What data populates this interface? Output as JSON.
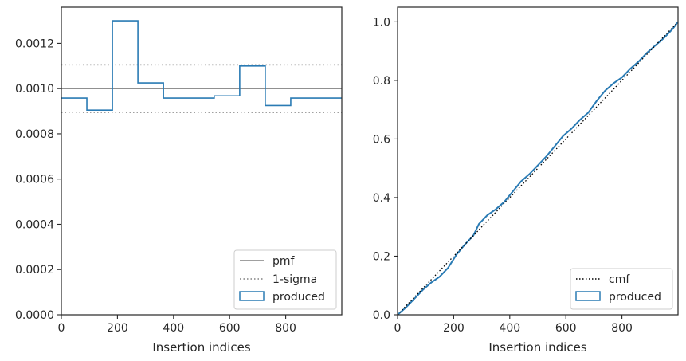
{
  "colors": {
    "produced": "#2a7bb4",
    "pmf": "#808080",
    "sigma": "#808080",
    "cmf": "#000000",
    "axes": "#262626"
  },
  "chart_data": [
    {
      "type": "step",
      "xlabel": "Insertion indices",
      "ylabel": "",
      "xlim": [
        0,
        1000
      ],
      "ylim": [
        0,
        0.00136
      ],
      "x_ticks": [
        0,
        200,
        400,
        600,
        800
      ],
      "x_tick_labels": [
        "0",
        "200",
        "400",
        "600",
        "800"
      ],
      "y_ticks": [
        0,
        0.0002,
        0.0004,
        0.0006,
        0.0008,
        0.001,
        0.0012
      ],
      "y_tick_labels": [
        "0.0000",
        "0.0002",
        "0.0004",
        "0.0006",
        "0.0008",
        "0.0010",
        "0.0012"
      ],
      "grid": false,
      "legend_position": "lower-right",
      "bin_edges": [
        0,
        91,
        182,
        273,
        364,
        455,
        545,
        636,
        727,
        818,
        909,
        1000
      ],
      "series": [
        {
          "name": "pmf",
          "style": "solid",
          "value": 0.001
        },
        {
          "name": "1-sigma",
          "style": "dotted",
          "values": [
            0.000895,
            0.001105
          ]
        },
        {
          "name": "produced",
          "style": "step",
          "values": [
            0.000958,
            0.000905,
            0.0013,
            0.001025,
            0.000958,
            0.000958,
            0.000968,
            0.0011,
            0.000925,
            0.000958,
            0.000958
          ]
        }
      ]
    },
    {
      "type": "line",
      "xlabel": "Insertion indices",
      "ylabel": "",
      "xlim": [
        0,
        1000
      ],
      "ylim": [
        0,
        1.05
      ],
      "x_ticks": [
        0,
        200,
        400,
        600,
        800
      ],
      "x_tick_labels": [
        "0",
        "200",
        "400",
        "600",
        "800"
      ],
      "y_ticks": [
        0,
        0.2,
        0.4,
        0.6,
        0.8,
        1.0
      ],
      "y_tick_labels": [
        "0.0",
        "0.2",
        "0.4",
        "0.6",
        "0.8",
        "1.0"
      ],
      "grid": false,
      "legend_position": "lower-right",
      "series": [
        {
          "name": "cmf",
          "style": "dotted",
          "x": [
            0,
            1000
          ],
          "y": [
            0,
            1
          ]
        },
        {
          "name": "produced",
          "style": "solid",
          "x": [
            0,
            30,
            60,
            90,
            120,
            150,
            180,
            210,
            240,
            270,
            290,
            320,
            350,
            380,
            410,
            440,
            470,
            500,
            530,
            560,
            590,
            620,
            650,
            680,
            710,
            740,
            770,
            800,
            830,
            860,
            890,
            920,
            950,
            980,
            1000
          ],
          "y": [
            0,
            0.025,
            0.055,
            0.085,
            0.11,
            0.13,
            0.16,
            0.205,
            0.24,
            0.27,
            0.31,
            0.34,
            0.36,
            0.385,
            0.42,
            0.455,
            0.48,
            0.51,
            0.54,
            0.575,
            0.61,
            0.635,
            0.665,
            0.69,
            0.73,
            0.765,
            0.79,
            0.81,
            0.84,
            0.865,
            0.895,
            0.92,
            0.945,
            0.975,
            1.0
          ]
        }
      ]
    }
  ]
}
